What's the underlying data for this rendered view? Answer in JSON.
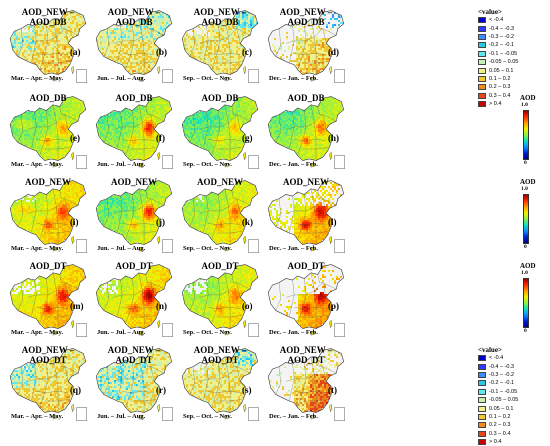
{
  "figure": {
    "rows": [
      {
        "id": "diff_db",
        "title": "AOD_NEW – AOD_DB",
        "scale": "diff",
        "panels": [
          {
            "letter": "(a)",
            "season": "Mar. – Apr. – May.",
            "style": "diff_spring"
          },
          {
            "letter": "(b)",
            "season": "Jun. – Jul. – Aug.",
            "style": "diff_summer"
          },
          {
            "letter": "(c)",
            "season": "Sep. – Oct. – Nov.",
            "style": "diff_autumn"
          },
          {
            "letter": "(d)",
            "season": "Dec. – Jan. – Feb.",
            "style": "diff_winter"
          }
        ]
      },
      {
        "id": "db",
        "title": "AOD_DB",
        "scale": "aod",
        "panels": [
          {
            "letter": "(e)",
            "season": "Mar. – Apr. – May.",
            "style": "aod_spring"
          },
          {
            "letter": "(f)",
            "season": "Jun. – Jul. – Aug.",
            "style": "aod_summer"
          },
          {
            "letter": "(g)",
            "season": "Sep. – Oct. – Nov.",
            "style": "aod_autumn"
          },
          {
            "letter": "(h)",
            "season": "Dec. – Jan. – Feb.",
            "style": "aod_winter"
          }
        ]
      },
      {
        "id": "new",
        "title": "AOD_NEW",
        "scale": "aod",
        "panels": [
          {
            "letter": "(i)",
            "season": "Mar. – Apr. – May.",
            "style": "aod_spring_hi"
          },
          {
            "letter": "(j)",
            "season": "Jun. – Jul. – Aug.",
            "style": "aod_summer"
          },
          {
            "letter": "(k)",
            "season": "Sep. – Oct. – Nov.",
            "style": "aod_autumn_hi"
          },
          {
            "letter": "(l)",
            "season": "Dec. – Jan. – Feb.",
            "style": "aod_winter_hi"
          }
        ]
      },
      {
        "id": "dt",
        "title": "AOD_DT",
        "scale": "aod",
        "panels": [
          {
            "letter": "(m)",
            "season": "Mar. – Apr. – May.",
            "style": "aod_spring_dt"
          },
          {
            "letter": "(n)",
            "season": "Jun. – Jul. – Aug.",
            "style": "aod_summer_dt"
          },
          {
            "letter": "(o)",
            "season": "Sep. – Oct. – Nov.",
            "style": "aod_autumn_dt"
          },
          {
            "letter": "(p)",
            "season": "Dec. – Jan. – Feb.",
            "style": "aod_winter_dt"
          }
        ]
      },
      {
        "id": "diff_dt",
        "title": "AOD_NEW – AOD_DT",
        "scale": "diff",
        "panels": [
          {
            "letter": "(q)",
            "season": "Mar. – Apr. – May.",
            "style": "diff_spring"
          },
          {
            "letter": "(r)",
            "season": "Jun. – Jul. – Aug.",
            "style": "diff_summer_blue"
          },
          {
            "letter": "(s)",
            "season": "Sep. – Oct. – Nov.",
            "style": "diff_autumn"
          },
          {
            "letter": "(t)",
            "season": "Dec. – Jan. – Feb.",
            "style": "diff_winter_hi"
          }
        ]
      }
    ],
    "diff_legend": {
      "title": "<value>",
      "classes": [
        {
          "label": "< -0.4",
          "color": "#0000cc"
        },
        {
          "label": "-0.4 – -0.3",
          "color": "#2a3cff"
        },
        {
          "label": "-0.3 – -0.2",
          "color": "#3c8cff"
        },
        {
          "label": "-0.2 – -0.1",
          "color": "#28c8e6"
        },
        {
          "label": "-0.1 – -0.05",
          "color": "#64e6f0"
        },
        {
          "label": "-0.05 – 0.05",
          "color": "#c8f0b4"
        },
        {
          "label": "0.05 – 0.1",
          "color": "#f0f08c"
        },
        {
          "label": "0.1 – 0.2",
          "color": "#f0c832"
        },
        {
          "label": "0.2 – 0.3",
          "color": "#f08c1e"
        },
        {
          "label": "0.3 – 0.4",
          "color": "#e6461e"
        },
        {
          "label": "> 0.4",
          "color": "#c80000"
        }
      ]
    },
    "aod_colorbar": {
      "title": "AOD",
      "max_label": "1.0",
      "min_label": "0"
    },
    "colors": {
      "background": "#ffffff",
      "no_data": "#f4f4f4",
      "boundary": "#555555"
    }
  }
}
